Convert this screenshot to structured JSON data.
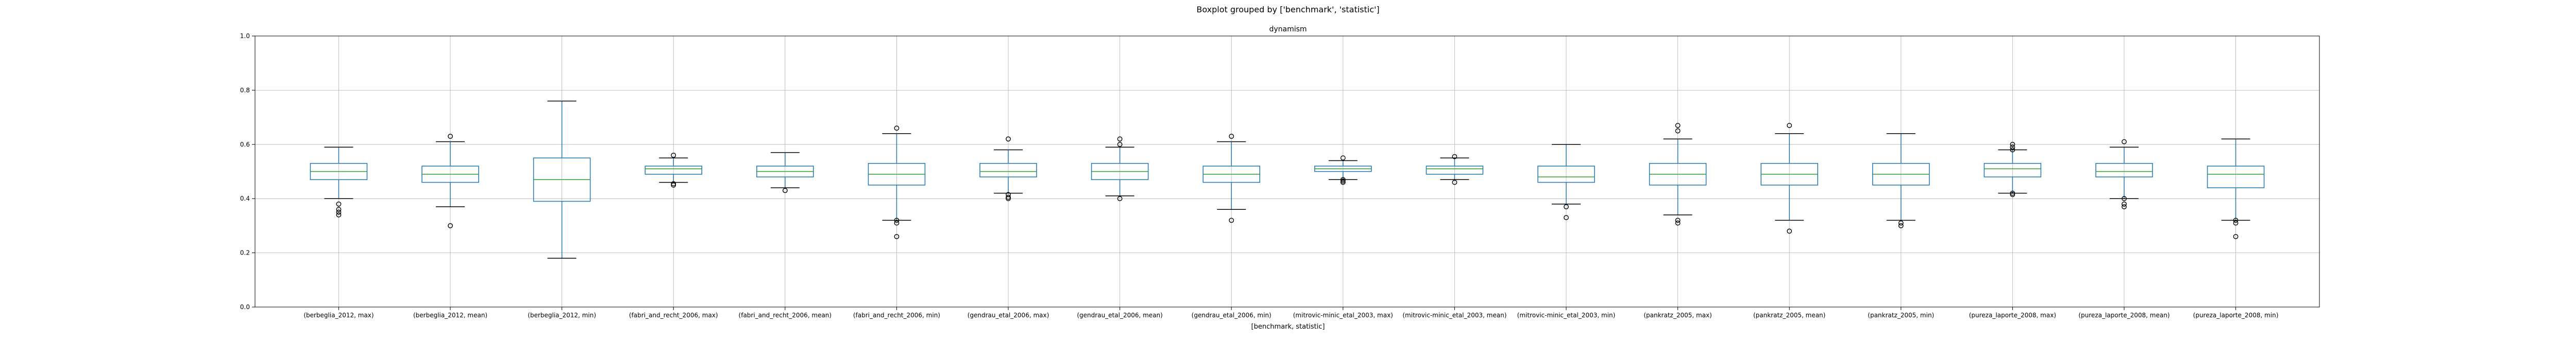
{
  "figure": {
    "suptitle": "Boxplot grouped by ['benchmark', 'statistic']",
    "title": "dynamism",
    "xlabel": "[benchmark, statistic]"
  },
  "colors": {
    "box": "#1f77b4",
    "median": "#2ca02c",
    "whisker": "#1f77b4",
    "flier": "#000000",
    "grid": "#b0b0b0",
    "axis": "#000000"
  },
  "chart_data": {
    "type": "boxplot",
    "title": "dynamism",
    "xlabel": "[benchmark, statistic]",
    "ylabel": "",
    "ylim": [
      0.0,
      1.0
    ],
    "yticks": [
      0.0,
      0.2,
      0.4,
      0.6,
      0.8,
      1.0
    ],
    "grid": true,
    "categories": [
      "(berbeglia_2012, max)",
      "(berbeglia_2012, mean)",
      "(berbeglia_2012, min)",
      "(fabri_and_recht_2006, max)",
      "(fabri_and_recht_2006, mean)",
      "(fabri_and_recht_2006, min)",
      "(gendrau_etal_2006, max)",
      "(gendrau_etal_2006, mean)",
      "(gendrau_etal_2006, min)",
      "(mitrovic-minic_etal_2003, max)",
      "(mitrovic-minic_etal_2003, mean)",
      "(mitrovic-minic_etal_2003, min)",
      "(pankratz_2005, max)",
      "(pankratz_2005, mean)",
      "(pankratz_2005, min)",
      "(pureza_laporte_2008, max)",
      "(pureza_laporte_2008, mean)",
      "(pureza_laporte_2008, min)"
    ],
    "boxes": [
      {
        "whislo": 0.4,
        "q1": 0.47,
        "med": 0.5,
        "q3": 0.53,
        "whishi": 0.59,
        "fliers": [
          0.38,
          0.36,
          0.35,
          0.34
        ]
      },
      {
        "whislo": 0.37,
        "q1": 0.46,
        "med": 0.49,
        "q3": 0.52,
        "whishi": 0.61,
        "fliers": [
          0.63,
          0.3
        ]
      },
      {
        "whislo": 0.18,
        "q1": 0.39,
        "med": 0.47,
        "q3": 0.55,
        "whishi": 0.76,
        "fliers": []
      },
      {
        "whislo": 0.46,
        "q1": 0.49,
        "med": 0.51,
        "q3": 0.52,
        "whishi": 0.55,
        "fliers": [
          0.56,
          0.455,
          0.45
        ]
      },
      {
        "whislo": 0.44,
        "q1": 0.48,
        "med": 0.5,
        "q3": 0.52,
        "whishi": 0.57,
        "fliers": [
          0.43
        ]
      },
      {
        "whislo": 0.32,
        "q1": 0.45,
        "med": 0.49,
        "q3": 0.53,
        "whishi": 0.64,
        "fliers": [
          0.66,
          0.32,
          0.31,
          0.26
        ]
      },
      {
        "whislo": 0.42,
        "q1": 0.48,
        "med": 0.5,
        "q3": 0.53,
        "whishi": 0.58,
        "fliers": [
          0.62,
          0.415,
          0.405,
          0.4
        ]
      },
      {
        "whislo": 0.41,
        "q1": 0.47,
        "med": 0.5,
        "q3": 0.53,
        "whishi": 0.59,
        "fliers": [
          0.62,
          0.6,
          0.4
        ]
      },
      {
        "whislo": 0.36,
        "q1": 0.46,
        "med": 0.49,
        "q3": 0.52,
        "whishi": 0.61,
        "fliers": [
          0.63,
          0.32
        ]
      },
      {
        "whislo": 0.47,
        "q1": 0.5,
        "med": 0.51,
        "q3": 0.52,
        "whishi": 0.54,
        "fliers": [
          0.55,
          0.47,
          0.465,
          0.46
        ]
      },
      {
        "whislo": 0.47,
        "q1": 0.49,
        "med": 0.51,
        "q3": 0.52,
        "whishi": 0.55,
        "fliers": [
          0.555,
          0.46
        ]
      },
      {
        "whislo": 0.38,
        "q1": 0.46,
        "med": 0.48,
        "q3": 0.52,
        "whishi": 0.6,
        "fliers": [
          0.37,
          0.33
        ]
      },
      {
        "whislo": 0.34,
        "q1": 0.45,
        "med": 0.49,
        "q3": 0.53,
        "whishi": 0.62,
        "fliers": [
          0.67,
          0.65,
          0.32,
          0.31
        ]
      },
      {
        "whislo": 0.32,
        "q1": 0.45,
        "med": 0.49,
        "q3": 0.53,
        "whishi": 0.64,
        "fliers": [
          0.67,
          0.28
        ]
      },
      {
        "whislo": 0.32,
        "q1": 0.45,
        "med": 0.49,
        "q3": 0.53,
        "whishi": 0.64,
        "fliers": [
          0.31,
          0.3
        ]
      },
      {
        "whislo": 0.42,
        "q1": 0.48,
        "med": 0.51,
        "q3": 0.53,
        "whishi": 0.58,
        "fliers": [
          0.6,
          0.59,
          0.58,
          0.42,
          0.415
        ]
      },
      {
        "whislo": 0.4,
        "q1": 0.48,
        "med": 0.5,
        "q3": 0.53,
        "whishi": 0.59,
        "fliers": [
          0.61,
          0.4,
          0.38,
          0.37
        ]
      },
      {
        "whislo": 0.32,
        "q1": 0.44,
        "med": 0.49,
        "q3": 0.52,
        "whishi": 0.62,
        "fliers": [
          0.32,
          0.31,
          0.26
        ]
      }
    ]
  }
}
